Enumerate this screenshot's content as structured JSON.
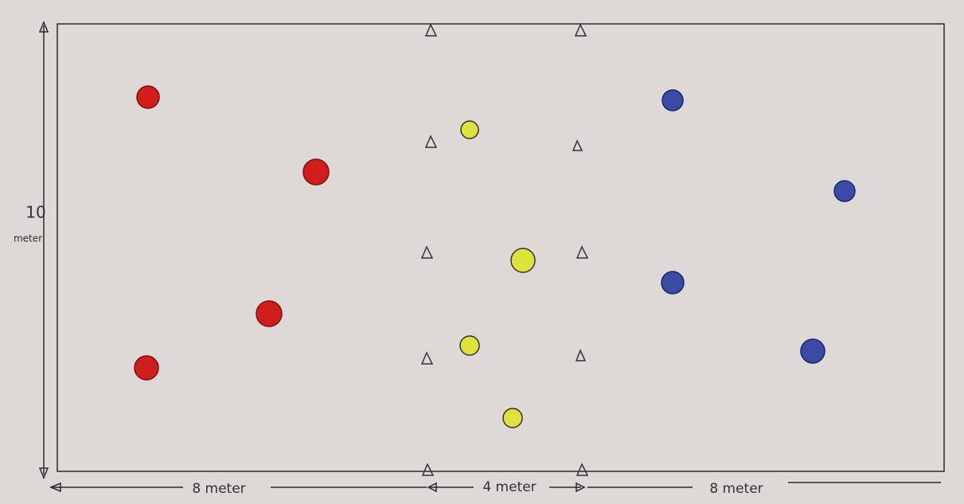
{
  "labels": {
    "height": {
      "value": "10",
      "unit": "meter"
    },
    "widths": [
      "8 meter",
      "4 meter",
      "8 meter"
    ]
  }
}
